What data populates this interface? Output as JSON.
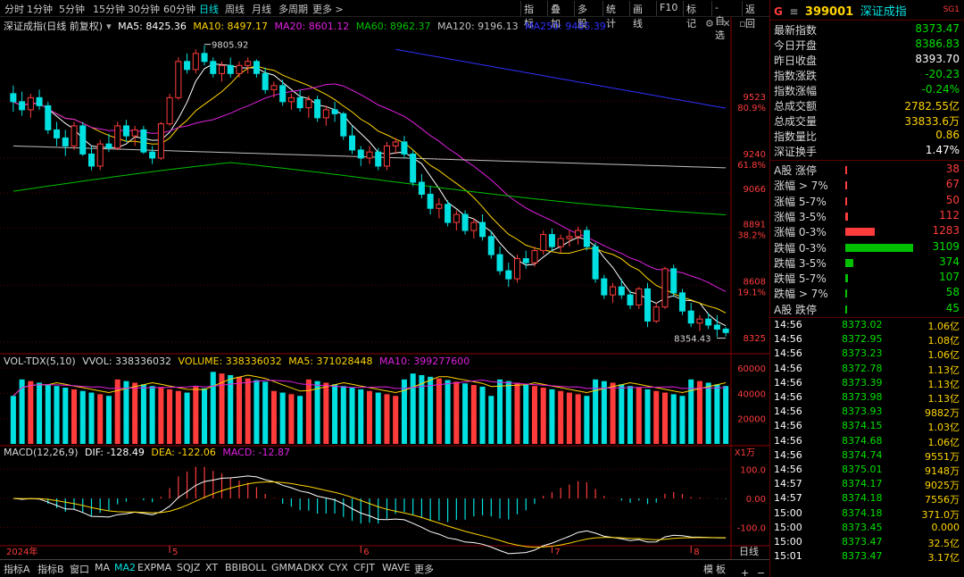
{
  "topbar": {
    "timeframes": [
      "分时",
      "1分钟",
      "5分钟",
      "15分钟",
      "30分钟",
      "60分钟",
      "日线",
      "周线",
      "月线",
      "多周期",
      "更多 >"
    ],
    "active_tf": "日线",
    "tools": [
      "指标",
      "叠加",
      "多股",
      "统计",
      "画线",
      "F10",
      "标记",
      "-自选",
      "返回"
    ]
  },
  "main_legend": {
    "name": "深证成指(日线 前复权)",
    "ma5": "MA5: 8425.36",
    "ma10": "MA10: 8497.17",
    "ma20": "MA20: 8601.12",
    "ma60": "MA60: 8962.37",
    "ma120": "MA120: 9196.13",
    "ma250": "MA250: 9485.39"
  },
  "vol_legend": {
    "name": "VOL-TDX(5,10)",
    "vvol": "VVOL: 338336032",
    "volume": "VOLUME: 338336032",
    "ma5": "MA5: 371028448",
    "ma10": "MA10: 399277600"
  },
  "macd_legend": {
    "name": "MACD(12,26,9)",
    "dif": "DIF: -128.49",
    "dea": "DEA: -122.06",
    "macd": "MACD: -12.87"
  },
  "price_axis": [
    "9523",
    "80.9%",
    "9240",
    "61.8%",
    "9066",
    "8891",
    "38.2%",
    "8608",
    "19.1%",
    "8325"
  ],
  "vol_axis": [
    "60000",
    "40000",
    "20000",
    "X1万"
  ],
  "macd_axis": [
    "100.0",
    "0.00",
    "-100.0"
  ],
  "annotations": {
    "high": "9805.92",
    "low": "8354.43"
  },
  "date_labels": [
    "2024年",
    "5",
    "6",
    "7",
    "8"
  ],
  "right_panel": {
    "code": "399001",
    "name": "深证成指",
    "badge": "SG1",
    "quote": [
      {
        "label": "最新指数",
        "value": "8373.47",
        "cls": "green"
      },
      {
        "label": "今日开盘",
        "value": "8386.83",
        "cls": "green"
      },
      {
        "label": "昨日收盘",
        "value": "8393.70",
        "cls": "white"
      },
      {
        "label": "指数涨跌",
        "value": "-20.23",
        "cls": "green"
      },
      {
        "label": "指数涨幅",
        "value": "-0.24%",
        "cls": "green"
      },
      {
        "label": "总成交额",
        "value": "2782.55亿",
        "cls": "yellow"
      },
      {
        "label": "总成交量",
        "value": "33833.6万",
        "cls": "yellow"
      },
      {
        "label": "指数量比",
        "value": "0.86",
        "cls": "yellow"
      },
      {
        "label": "深证换手",
        "value": "1.47%",
        "cls": "white"
      }
    ],
    "breadth_up": [
      {
        "label": "A股 涨停",
        "value": "38"
      },
      {
        "label": "涨幅 > 7%",
        "value": "67"
      },
      {
        "label": "涨幅 5-7%",
        "value": "50"
      },
      {
        "label": "涨幅 3-5%",
        "value": "112"
      },
      {
        "label": "涨幅 0-3%",
        "value": "1283"
      }
    ],
    "breadth_down": [
      {
        "label": "跌幅 0-3%",
        "value": "3109"
      },
      {
        "label": "跌幅 3-5%",
        "value": "374"
      },
      {
        "label": "跌幅 5-7%",
        "value": "107"
      },
      {
        "label": "跌幅 > 7%",
        "value": "58"
      },
      {
        "label": "A股 跌停",
        "value": "45"
      }
    ],
    "ticks": [
      {
        "time": "14:56",
        "price": "8373.02",
        "vol": "1.06亿"
      },
      {
        "time": "14:56",
        "price": "8372.95",
        "vol": "1.08亿"
      },
      {
        "time": "14:56",
        "price": "8373.23",
        "vol": "1.06亿"
      },
      {
        "time": "14:56",
        "price": "8372.78",
        "vol": "1.13亿"
      },
      {
        "time": "14:56",
        "price": "8373.39",
        "vol": "1.13亿"
      },
      {
        "time": "14:56",
        "price": "8373.98",
        "vol": "1.13亿"
      },
      {
        "time": "14:56",
        "price": "8373.93",
        "vol": "9882万"
      },
      {
        "time": "14:56",
        "price": "8374.15",
        "vol": "1.03亿"
      },
      {
        "time": "14:56",
        "price": "8374.68",
        "vol": "1.06亿"
      },
      {
        "time": "14:56",
        "price": "8374.74",
        "vol": "9551万"
      },
      {
        "time": "14:56",
        "price": "8375.01",
        "vol": "9148万"
      },
      {
        "time": "14:57",
        "price": "8374.17",
        "vol": "9025万"
      },
      {
        "time": "14:57",
        "price": "8374.18",
        "vol": "7556万"
      },
      {
        "time": "15:00",
        "price": "8374.18",
        "vol": "371.0万"
      },
      {
        "time": "15:00",
        "price": "8373.45",
        "vol": "0.000"
      },
      {
        "time": "15:00",
        "price": "8373.47",
        "vol": "32.5亿"
      },
      {
        "time": "15:01",
        "price": "8373.47",
        "vol": "3.17亿"
      }
    ]
  },
  "bottom_tabs": [
    "指标A",
    "指标B",
    "窗口",
    "MA",
    "MA2",
    "EXPMA",
    "SQJZ",
    "XT",
    "BBIBOLL",
    "GMMA",
    "DKX",
    "CYX",
    "CFJT",
    "WAVE",
    "更多"
  ],
  "bottom_right": {
    "mo": "模",
    "ban": "板",
    "dayline": "日线",
    "plus": "+",
    "minus": "−"
  },
  "colors": {
    "up": "#ff3c3c",
    "down": "#00e0e0",
    "ma5": "#ffffff",
    "ma10": "#ffd400",
    "ma20": "#e020e0",
    "ma60": "#00c000",
    "ma120": "#c0c0c0",
    "ma250": "#3030ff"
  },
  "chart_data": {
    "type": "candlestick",
    "series_note": "daily candles, 深证成指, approximate OHLC",
    "candles": [
      [
        9560,
        9600,
        9470,
        9520
      ],
      [
        9520,
        9570,
        9450,
        9480
      ],
      [
        9480,
        9560,
        9440,
        9540
      ],
      [
        9540,
        9580,
        9480,
        9500
      ],
      [
        9500,
        9520,
        9360,
        9380
      ],
      [
        9380,
        9420,
        9300,
        9340
      ],
      [
        9340,
        9380,
        9250,
        9300
      ],
      [
        9300,
        9420,
        9280,
        9400
      ],
      [
        9400,
        9420,
        9250,
        9260
      ],
      [
        9260,
        9300,
        9180,
        9200
      ],
      [
        9200,
        9330,
        9180,
        9310
      ],
      [
        9310,
        9360,
        9270,
        9290
      ],
      [
        9290,
        9420,
        9280,
        9400
      ],
      [
        9400,
        9430,
        9320,
        9350
      ],
      [
        9350,
        9400,
        9300,
        9380
      ],
      [
        9380,
        9400,
        9260,
        9270
      ],
      [
        9270,
        9300,
        9210,
        9240
      ],
      [
        9240,
        9420,
        9230,
        9410
      ],
      [
        9410,
        9560,
        9400,
        9540
      ],
      [
        9540,
        9740,
        9530,
        9720
      ],
      [
        9720,
        9760,
        9660,
        9680
      ],
      [
        9680,
        9780,
        9660,
        9760
      ],
      [
        9760,
        9800,
        9700,
        9720
      ],
      [
        9720,
        9740,
        9640,
        9660
      ],
      [
        9660,
        9720,
        9620,
        9700
      ],
      [
        9700,
        9740,
        9640,
        9660
      ],
      [
        9660,
        9720,
        9640,
        9700
      ],
      [
        9700,
        9740,
        9660,
        9720
      ],
      [
        9720,
        9730,
        9640,
        9660
      ],
      [
        9660,
        9690,
        9560,
        9580
      ],
      [
        9580,
        9620,
        9540,
        9600
      ],
      [
        9600,
        9630,
        9500,
        9520
      ],
      [
        9520,
        9560,
        9480,
        9540
      ],
      [
        9540,
        9580,
        9470,
        9490
      ],
      [
        9490,
        9550,
        9440,
        9530
      ],
      [
        9530,
        9550,
        9420,
        9440
      ],
      [
        9440,
        9500,
        9400,
        9480
      ],
      [
        9480,
        9520,
        9420,
        9460
      ],
      [
        9460,
        9470,
        9330,
        9350
      ],
      [
        9350,
        9400,
        9260,
        9280
      ],
      [
        9280,
        9300,
        9200,
        9240
      ],
      [
        9240,
        9300,
        9210,
        9270
      ],
      [
        9270,
        9290,
        9180,
        9200
      ],
      [
        9200,
        9320,
        9180,
        9300
      ],
      [
        9300,
        9340,
        9260,
        9320
      ],
      [
        9320,
        9350,
        9240,
        9260
      ],
      [
        9260,
        9280,
        9100,
        9120
      ],
      [
        9120,
        9160,
        9040,
        9060
      ],
      [
        9060,
        9100,
        8960,
        8990
      ],
      [
        8990,
        9040,
        8940,
        9010
      ],
      [
        9010,
        9030,
        8900,
        8920
      ],
      [
        8920,
        8980,
        8880,
        8960
      ],
      [
        8960,
        8980,
        8860,
        8880
      ],
      [
        8880,
        8940,
        8840,
        8920
      ],
      [
        8920,
        8960,
        8830,
        8850
      ],
      [
        8850,
        8880,
        8740,
        8760
      ],
      [
        8760,
        8800,
        8660,
        8680
      ],
      [
        8680,
        8720,
        8600,
        8640
      ],
      [
        8640,
        8760,
        8620,
        8740
      ],
      [
        8740,
        8780,
        8690,
        8720
      ],
      [
        8720,
        8800,
        8700,
        8780
      ],
      [
        8780,
        8880,
        8760,
        8860
      ],
      [
        8860,
        8890,
        8780,
        8800
      ],
      [
        8800,
        8860,
        8770,
        8840
      ],
      [
        8840,
        8880,
        8800,
        8850
      ],
      [
        8850,
        8900,
        8810,
        8880
      ],
      [
        8880,
        8900,
        8780,
        8800
      ],
      [
        8800,
        8820,
        8620,
        8640
      ],
      [
        8640,
        8660,
        8540,
        8560
      ],
      [
        8560,
        8620,
        8520,
        8600
      ],
      [
        8600,
        8640,
        8540,
        8560
      ],
      [
        8560,
        8580,
        8490,
        8510
      ],
      [
        8510,
        8600,
        8490,
        8590
      ],
      [
        8590,
        8620,
        8400,
        8430
      ],
      [
        8430,
        8520,
        8420,
        8500
      ],
      [
        8500,
        8700,
        8490,
        8690
      ],
      [
        8690,
        8710,
        8550,
        8570
      ],
      [
        8570,
        8590,
        8460,
        8480
      ],
      [
        8480,
        8520,
        8400,
        8420
      ],
      [
        8420,
        8460,
        8380,
        8440
      ],
      [
        8440,
        8470,
        8390,
        8410
      ],
      [
        8410,
        8460,
        8350,
        8390
      ],
      [
        8390,
        8400,
        8354,
        8373
      ]
    ]
  }
}
